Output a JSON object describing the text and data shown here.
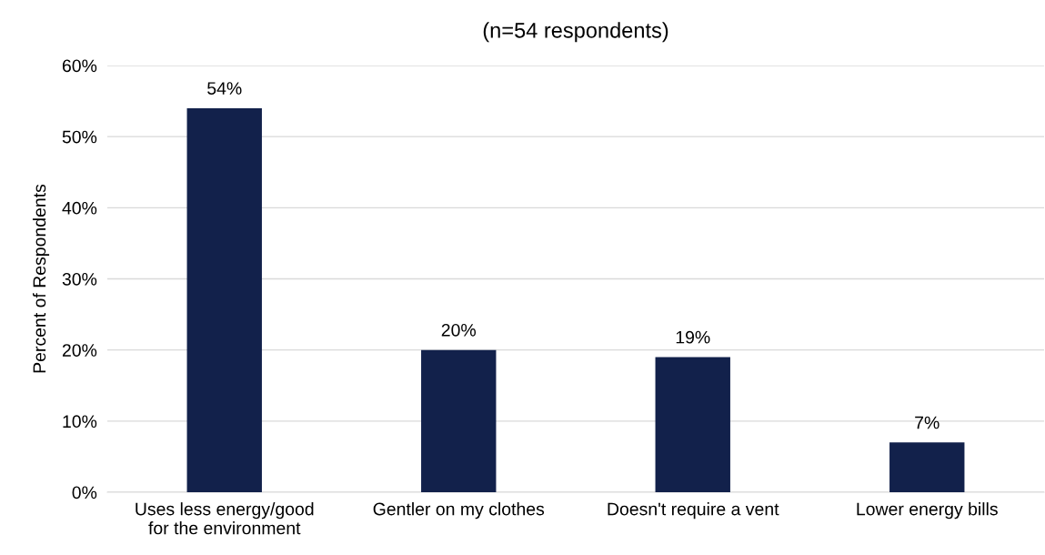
{
  "chart_data": {
    "type": "bar",
    "title": "(n=54 respondents)",
    "ylabel": "Percent of Respondents",
    "categories": [
      "Uses less energy/good\nfor the environment",
      "Gentler on my clothes",
      "Doesn't require a vent",
      "Lower energy bills"
    ],
    "values": [
      54,
      20,
      19,
      7
    ],
    "color": "#12214b",
    "value_labels": [
      "54%",
      "20%",
      "19%",
      "7%"
    ],
    "ylim": [
      0,
      60
    ],
    "yticks": [
      {
        "value": 0,
        "label": "0%"
      },
      {
        "value": 10,
        "label": "10%"
      },
      {
        "value": 20,
        "label": "20%"
      },
      {
        "value": 30,
        "label": "30%"
      },
      {
        "value": 40,
        "label": "40%"
      },
      {
        "value": 50,
        "label": "50%"
      },
      {
        "value": 60,
        "label": "60%"
      }
    ],
    "grid": "y",
    "legend": false
  }
}
